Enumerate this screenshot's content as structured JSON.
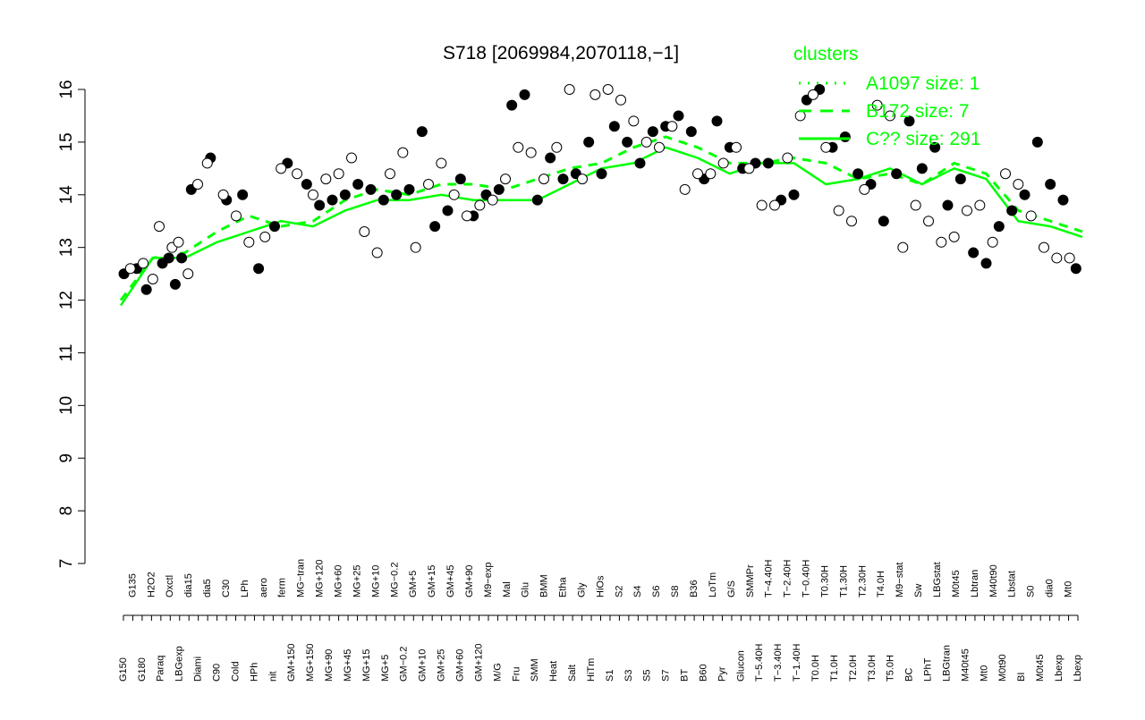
{
  "chart_data": {
    "type": "scatter",
    "title": "S718 [2069984,2070118,−1]",
    "xlabel": "",
    "ylabel": "",
    "ylim": [
      7,
      16
    ],
    "yticks": [
      7,
      8,
      9,
      10,
      11,
      12,
      13,
      14,
      15,
      16
    ],
    "xticks": [
      "G150",
      "G135",
      "G180",
      "H2O2",
      "Paraq",
      "Oxctl",
      "LBGexp",
      "dia15",
      "Diami",
      "dia5",
      "C90",
      "C30",
      "Cold",
      "LPh",
      "HPh",
      "aero",
      "nit",
      "ferm",
      "GM+150",
      "MG−tran",
      "MG+150",
      "MG+120",
      "MG+90",
      "MG+60",
      "MG+45",
      "MG+25",
      "MG+15",
      "MG+10",
      "MG+5",
      "MG−0.2",
      "GM−0.2",
      "GM+5",
      "GM+10",
      "GM+15",
      "GM+25",
      "GM+45",
      "GM+60",
      "GM+90",
      "GM+120",
      "M9−exp",
      "M/G",
      "Mal",
      "Fru",
      "Glu",
      "SMM",
      "BMM",
      "Heat",
      "Etha",
      "Salt",
      "Gly",
      "HiTm",
      "HiOs",
      "S1",
      "S2",
      "S3",
      "S4",
      "S5",
      "S6",
      "S7",
      "S8",
      "BT",
      "B36",
      "B60",
      "LoTm",
      "Pyr",
      "G/S",
      "Glucon",
      "SMMPr",
      "T−5.40H",
      "T−4.40H",
      "T−3.40H",
      "T−2.40H",
      "T−1.40H",
      "T−0.40H",
      "T0.0H",
      "T0.30H",
      "T1.0H",
      "T1.30H",
      "T2.0H",
      "T2.30H",
      "T3.0H",
      "T4.0H",
      "T5.0H",
      "M9−stat",
      "BC",
      "Sw",
      "LPhT",
      "LBGstat",
      "LBGtran",
      "M0t45",
      "M40t45",
      "Lbtran",
      "Mt0",
      "M40t90",
      "M0t90",
      "Lbstat",
      "BI",
      "S0",
      "M0t45",
      "dia0",
      "Lbexp",
      "Mt0",
      "Lbexp"
    ],
    "x_range": [
      0,
      300
    ],
    "series": [
      {
        "name": "A1097 size: 1",
        "line": "dotted",
        "color": "#00ff00",
        "x": [],
        "y": []
      },
      {
        "name": "B172 size: 7",
        "line": "dashed",
        "color": "#00ff00",
        "x": [
          0,
          10,
          20,
          30,
          40,
          50,
          60,
          70,
          80,
          90,
          100,
          110,
          120,
          130,
          140,
          150,
          160,
          170,
          180,
          190,
          200,
          210,
          220,
          230,
          240,
          250,
          260,
          270,
          280,
          290,
          300
        ],
        "y": [
          12.0,
          12.8,
          12.9,
          13.3,
          13.6,
          13.4,
          13.5,
          13.9,
          14.1,
          14.0,
          14.2,
          14.2,
          14.1,
          14.3,
          14.5,
          14.6,
          14.9,
          15.1,
          14.9,
          14.6,
          14.6,
          14.7,
          14.6,
          14.3,
          14.4,
          14.2,
          14.6,
          14.4,
          13.7,
          13.5,
          13.3
        ]
      },
      {
        "name": "C?? size: 291",
        "line": "solid",
        "color": "#00ff00",
        "x": [
          0,
          10,
          20,
          30,
          40,
          50,
          60,
          70,
          80,
          90,
          100,
          110,
          120,
          130,
          140,
          150,
          160,
          170,
          180,
          190,
          200,
          210,
          220,
          230,
          240,
          250,
          260,
          270,
          280,
          290,
          300
        ],
        "y": [
          11.9,
          12.8,
          12.8,
          13.1,
          13.3,
          13.5,
          13.4,
          13.7,
          13.9,
          13.9,
          14.0,
          13.9,
          13.9,
          13.9,
          14.2,
          14.5,
          14.6,
          14.9,
          14.7,
          14.4,
          14.6,
          14.6,
          14.2,
          14.3,
          14.5,
          14.2,
          14.5,
          14.3,
          13.5,
          13.4,
          13.2
        ]
      }
    ],
    "points_filled": {
      "x": [
        1,
        5,
        8,
        13,
        15,
        17,
        19,
        22,
        28,
        33,
        38,
        43,
        48,
        52,
        58,
        62,
        66,
        70,
        74,
        78,
        82,
        86,
        90,
        94,
        98,
        102,
        106,
        110,
        114,
        118,
        122,
        126,
        130,
        134,
        138,
        142,
        146,
        150,
        154,
        158,
        162,
        166,
        170,
        174,
        178,
        182,
        186,
        190,
        194,
        198,
        202,
        206,
        210,
        214,
        218,
        222,
        226,
        230,
        234,
        238,
        242,
        246,
        250,
        254,
        258,
        262,
        266,
        270,
        274,
        278,
        282,
        286,
        290,
        294,
        298
      ],
      "y": [
        12.5,
        12.6,
        12.2,
        12.7,
        12.8,
        12.3,
        12.8,
        14.1,
        14.7,
        13.9,
        14.0,
        12.6,
        13.4,
        14.6,
        14.2,
        13.8,
        13.9,
        14.0,
        14.2,
        14.1,
        13.9,
        14.0,
        14.1,
        15.2,
        13.4,
        13.7,
        14.3,
        13.6,
        14.0,
        14.1,
        15.7,
        15.9,
        13.9,
        14.7,
        14.3,
        14.4,
        15.0,
        14.4,
        15.3,
        15.0,
        14.6,
        15.2,
        15.3,
        15.5,
        15.2,
        14.3,
        15.4,
        14.9,
        14.5,
        14.6,
        14.6,
        13.9,
        14.0,
        15.8,
        16.0,
        14.9,
        15.1,
        14.4,
        14.2,
        13.5,
        14.4,
        15.4,
        14.5,
        14.9,
        13.8,
        14.3,
        12.9,
        12.7,
        13.4,
        13.7,
        14.0,
        15.0,
        14.2,
        13.9,
        12.6
      ]
    },
    "points_open": {
      "x": [
        3,
        7,
        10,
        12,
        16,
        18,
        21,
        24,
        27,
        32,
        36,
        40,
        45,
        50,
        55,
        60,
        64,
        68,
        72,
        76,
        80,
        84,
        88,
        92,
        96,
        100,
        104,
        108,
        112,
        116,
        120,
        124,
        128,
        132,
        136,
        140,
        144,
        148,
        152,
        156,
        160,
        164,
        168,
        172,
        176,
        180,
        184,
        188,
        192,
        196,
        200,
        204,
        208,
        212,
        216,
        220,
        224,
        228,
        232,
        236,
        240,
        244,
        248,
        252,
        256,
        260,
        264,
        268,
        272,
        276,
        280,
        284,
        288,
        292,
        296
      ],
      "y": [
        12.6,
        12.7,
        12.4,
        13.4,
        13.0,
        13.1,
        12.5,
        14.2,
        14.6,
        14.0,
        13.6,
        13.1,
        13.2,
        14.5,
        14.4,
        14.0,
        14.3,
        14.4,
        14.7,
        13.3,
        12.9,
        14.4,
        14.8,
        13.0,
        14.2,
        14.6,
        14.0,
        13.6,
        13.8,
        13.9,
        14.3,
        14.9,
        14.8,
        14.3,
        14.9,
        16.0,
        14.3,
        15.9,
        16.0,
        15.8,
        15.4,
        15.0,
        14.9,
        15.3,
        14.1,
        14.4,
        14.4,
        14.6,
        14.9,
        14.5,
        13.8,
        13.8,
        14.7,
        15.5,
        15.9,
        14.9,
        13.7,
        13.5,
        14.1,
        15.7,
        15.5,
        13.0,
        13.8,
        13.5,
        13.1,
        13.2,
        13.7,
        13.8,
        13.1,
        14.4,
        14.2,
        13.6,
        13.0,
        12.8,
        12.8
      ]
    },
    "legend": {
      "title": "clusters",
      "position": "top-right",
      "entries": [
        "A1097 size: 1",
        "B172 size: 7",
        "C?? size: 291"
      ]
    },
    "grid": false,
    "accent_color": "#00ff00"
  }
}
